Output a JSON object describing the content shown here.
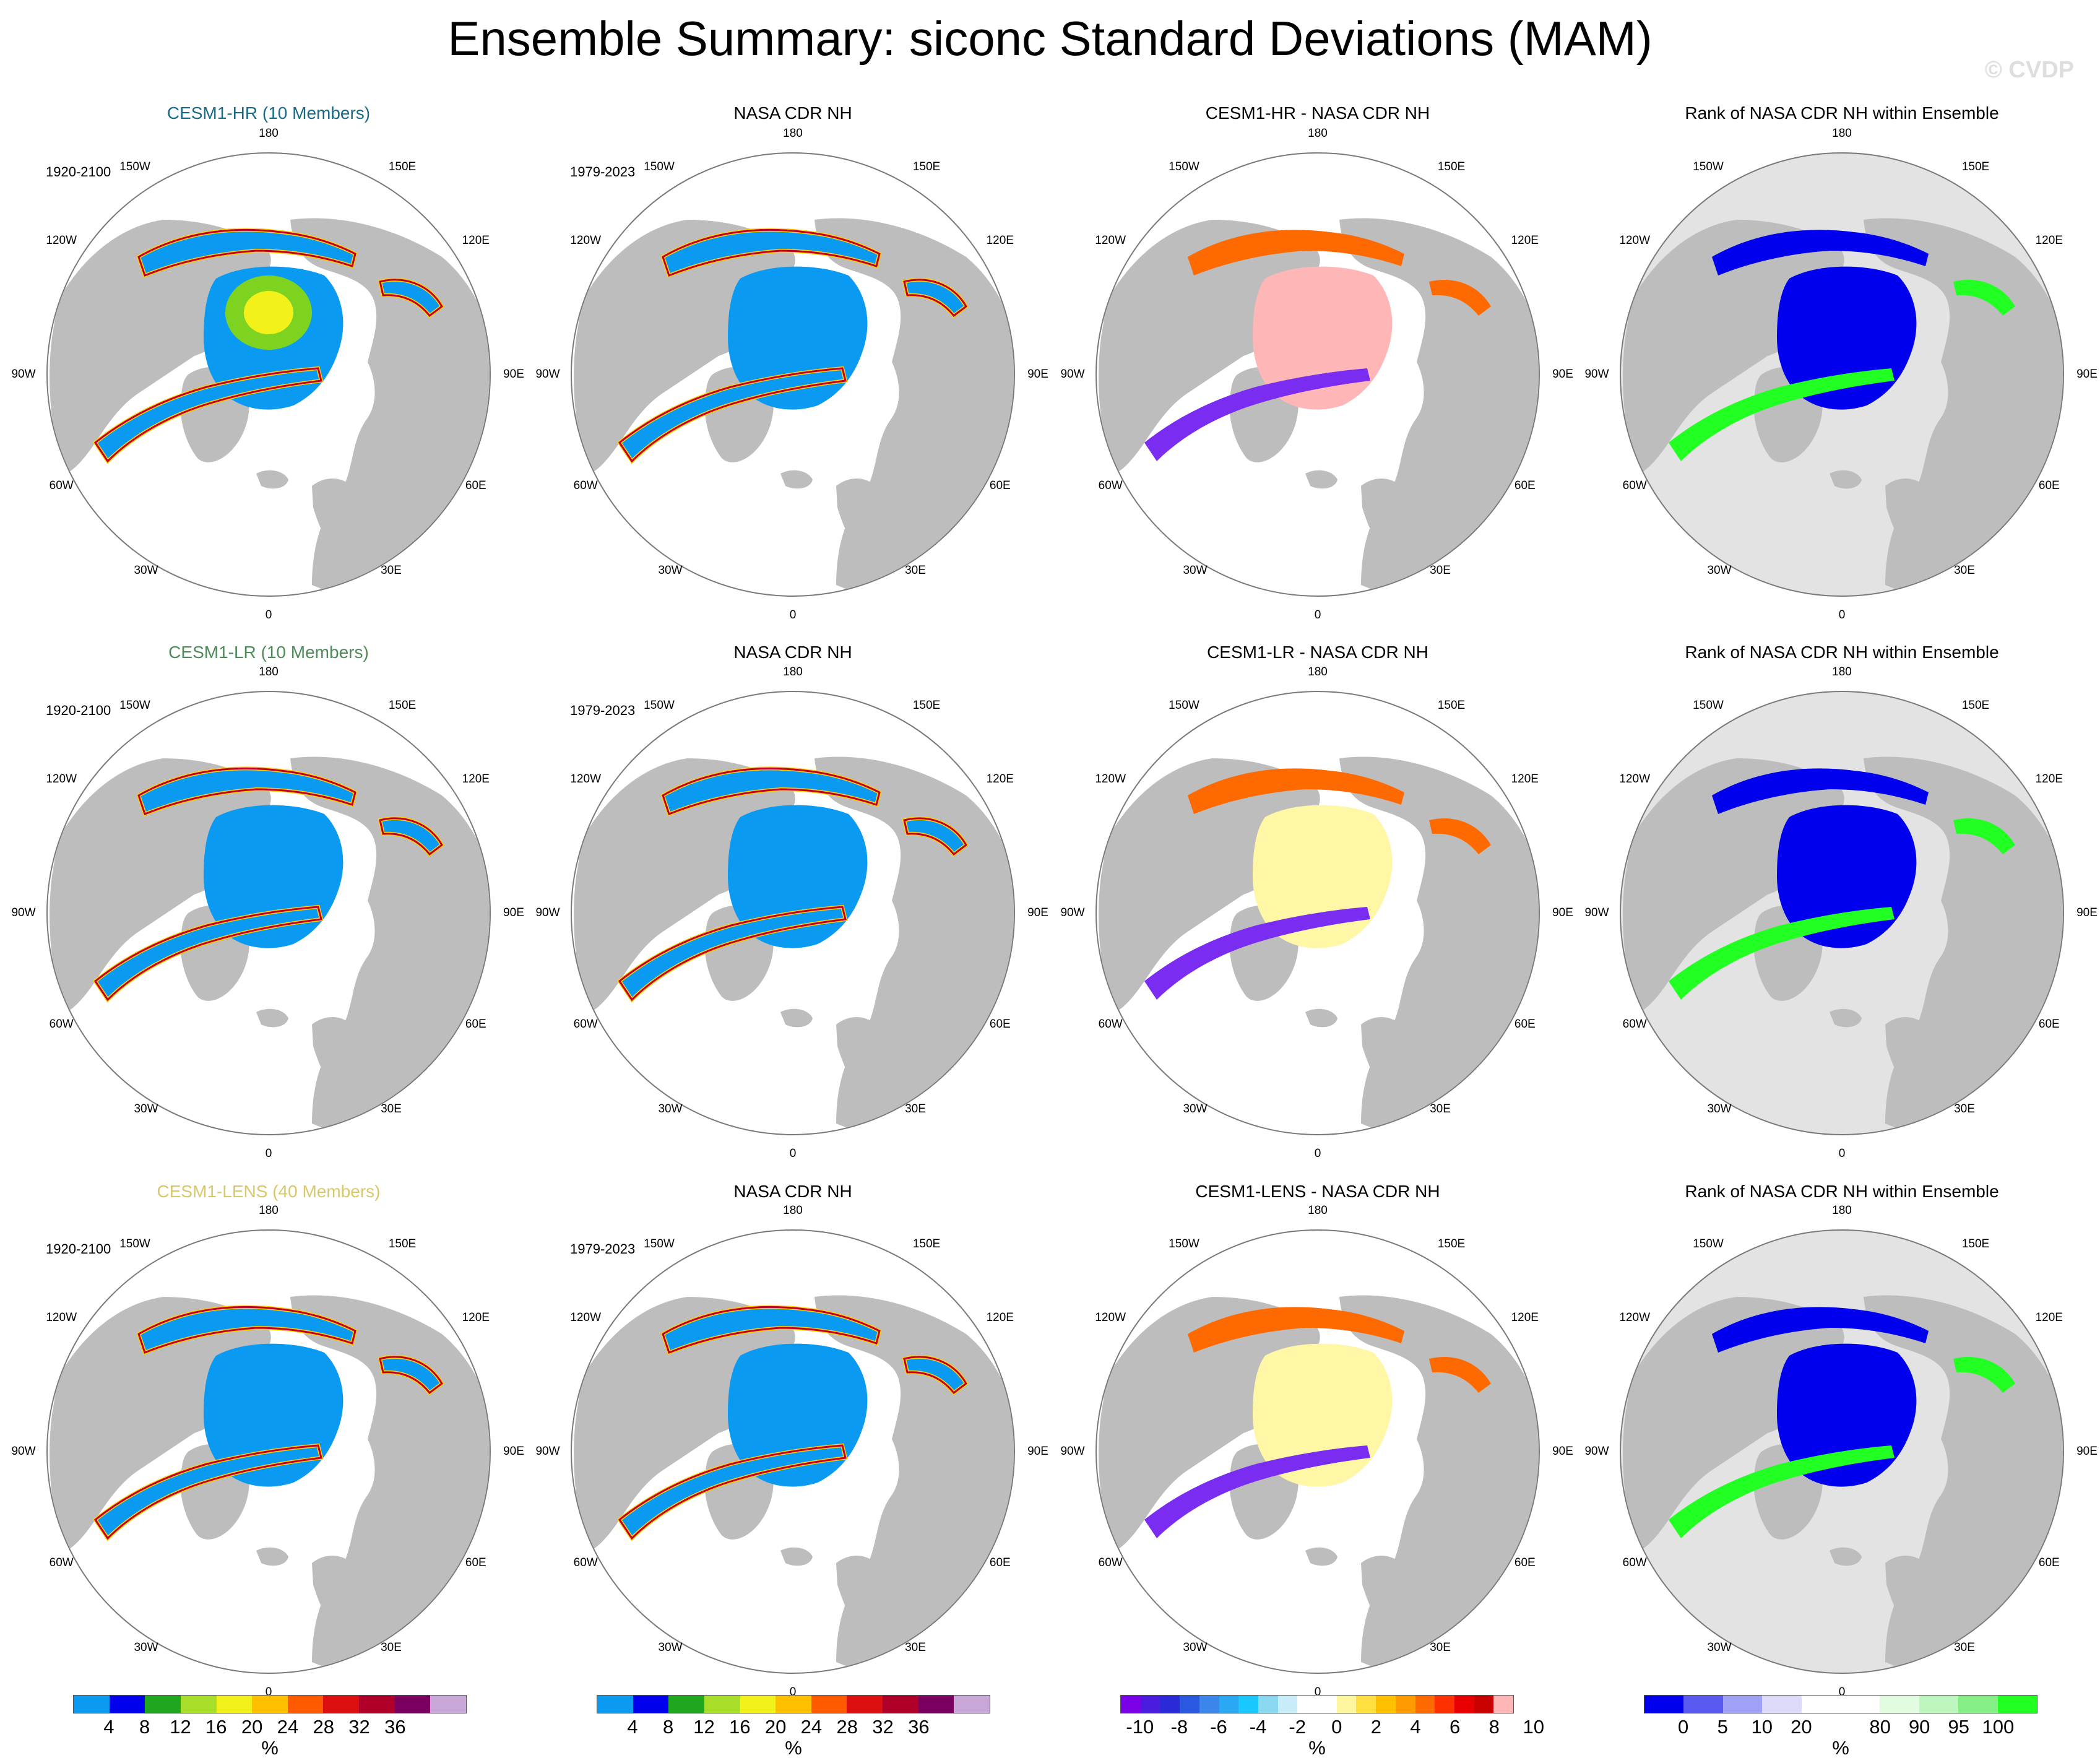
{
  "title": "Ensemble Summary: siconc Standard Deviations (MAM)",
  "watermark": "© CVDP",
  "rows": [
    {
      "panels": [
        {
          "kind": "model",
          "title": "CESM1-HR (10 Members)",
          "title_color": "#1a6a86",
          "period": "1920-2100"
        },
        {
          "kind": "obs",
          "title": "NASA CDR NH",
          "title_color": "#000000",
          "period": "1979-2023"
        },
        {
          "kind": "diff",
          "title": "CESM1-HR - NASA CDR NH",
          "title_color": "#000000",
          "period": ""
        },
        {
          "kind": "rank",
          "title": "Rank of NASA CDR NH within Ensemble",
          "title_color": "#000000",
          "period": ""
        }
      ]
    },
    {
      "panels": [
        {
          "kind": "model",
          "title": "CESM1-LR (10 Members)",
          "title_color": "#4f8a5a",
          "period": "1920-2100"
        },
        {
          "kind": "obs",
          "title": "NASA CDR NH",
          "title_color": "#000000",
          "period": "1979-2023"
        },
        {
          "kind": "diff",
          "title": "CESM1-LR - NASA CDR NH",
          "title_color": "#000000",
          "period": ""
        },
        {
          "kind": "rank",
          "title": "Rank of NASA CDR NH within Ensemble",
          "title_color": "#000000",
          "period": ""
        }
      ]
    },
    {
      "panels": [
        {
          "kind": "model",
          "title": "CESM1-LENS (40 Members)",
          "title_color": "#d8c86a",
          "period": "1920-2100"
        },
        {
          "kind": "obs",
          "title": "NASA CDR NH",
          "title_color": "#000000",
          "period": "1979-2023"
        },
        {
          "kind": "diff",
          "title": "CESM1-LENS - NASA CDR NH",
          "title_color": "#000000",
          "period": ""
        },
        {
          "kind": "rank",
          "title": "Rank of NASA CDR NH within Ensemble",
          "title_color": "#000000",
          "period": ""
        }
      ]
    }
  ],
  "map_labels": {
    "top": "180",
    "bottom": "0",
    "upper_left": "150W",
    "upper_right": "150E",
    "left_high": "120W",
    "right_high": "120E",
    "left_mid": "90W",
    "right_mid": "90E",
    "left_low": "60W",
    "right_low": "60E",
    "lower_left": "30W",
    "lower_right": "30E"
  },
  "colors": {
    "land": "#bdbdbd",
    "ocean": "#ffffff",
    "rank_ocean": "#e3e3e3",
    "ice_low": "#0a9af2",
    "ice_mid": "#ffd200",
    "ice_high": "#c0002a",
    "diff_pos": "#ffb6b6",
    "diff_neg": "#7a2cf0",
    "diff_warm": "#ff6a00",
    "diff_pale": "#fff6a6",
    "rank_low": "#0000ee",
    "rank_high": "#22ff22"
  },
  "colorbars": [
    {
      "colors": [
        "#0a9af2",
        "#0000ee",
        "#1fa81f",
        "#a8df2a",
        "#f2f21a",
        "#ffc000",
        "#ff5a00",
        "#dd1010",
        "#b0002a",
        "#7a0060",
        "#c8a8d8"
      ],
      "ticks": [
        "4",
        "8",
        "12",
        "16",
        "20",
        "24",
        "28",
        "32",
        "36"
      ],
      "unit": "%"
    },
    {
      "colors": [
        "#0a9af2",
        "#0000ee",
        "#1fa81f",
        "#a8df2a",
        "#f2f21a",
        "#ffc000",
        "#ff5a00",
        "#dd1010",
        "#b0002a",
        "#7a0060",
        "#c8a8d8"
      ],
      "ticks": [
        "4",
        "8",
        "12",
        "16",
        "20",
        "24",
        "28",
        "32",
        "36"
      ],
      "unit": "%"
    },
    {
      "colors": [
        "#7a00e8",
        "#4a1ce0",
        "#2a2ad8",
        "#2a58e0",
        "#3a86ea",
        "#2aa8f2",
        "#18c8ff",
        "#8ad8f0",
        "#c8ecf8",
        "#ffffff",
        "#ffffff",
        "#fff6a0",
        "#ffe040",
        "#ffc000",
        "#ff9a00",
        "#ff6a00",
        "#ff3000",
        "#e80000",
        "#c80000",
        "#ffb6b6"
      ],
      "ticks": [
        "-10",
        "-8",
        "-6",
        "-4",
        "-2",
        "0",
        "2",
        "4",
        "6",
        "8",
        "10"
      ],
      "unit": "%"
    },
    {
      "colors": [
        "#0000ee",
        "#5a5af0",
        "#a0a0f4",
        "#dcdcfa",
        "#ffffff",
        "#ffffff",
        "#e2fce2",
        "#bdf7bd",
        "#86ee86",
        "#22ff22"
      ],
      "ticks": [
        "0",
        "5",
        "10",
        "20",
        "80",
        "90",
        "95",
        "100"
      ],
      "unit": "%"
    }
  ]
}
